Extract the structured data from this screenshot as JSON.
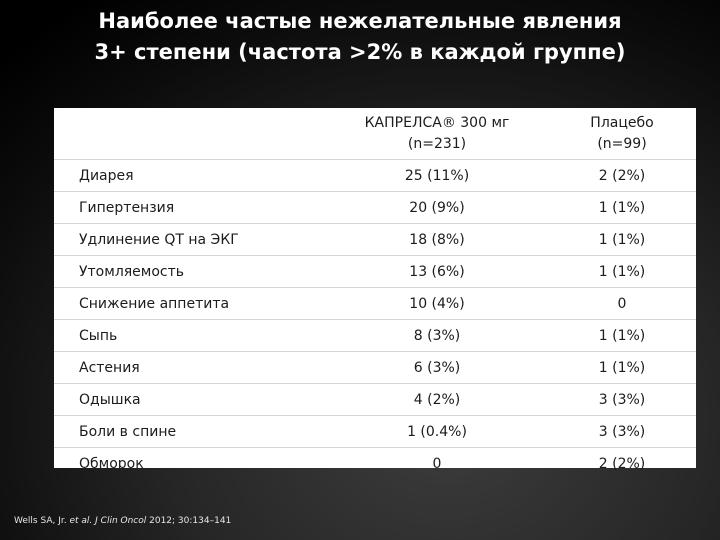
{
  "title": {
    "line1": "Наиболее частые нежелательные явления",
    "line2": "3+ степени (частота >2% в каждой группе)"
  },
  "table": {
    "corner": "",
    "col1": {
      "line1": "КАПРЕЛСА® 300 мг",
      "line2": "(n=231)"
    },
    "col2": {
      "line1": "Плацебо",
      "line2": "(n=99)"
    },
    "rows": [
      {
        "event": "Диарея",
        "drug": "25 (11%)",
        "placebo": "2 (2%)"
      },
      {
        "event": "Гипертензия",
        "drug": "20 (9%)",
        "placebo": "1 (1%)"
      },
      {
        "event": "Удлинение QT на ЭКГ",
        "drug": "18 (8%)",
        "placebo": "1 (1%)"
      },
      {
        "event": "Утомляемость",
        "drug": "13 (6%)",
        "placebo": "1 (1%)"
      },
      {
        "event": "Снижение аппетита",
        "drug": "10 (4%)",
        "placebo": "0"
      },
      {
        "event": "Сыпь",
        "drug": "8 (3%)",
        "placebo": "1 (1%)"
      },
      {
        "event": "Астения",
        "drug": "6 (3%)",
        "placebo": "1 (1%)"
      },
      {
        "event": "Одышка",
        "drug": "4 (2%)",
        "placebo": "3 (3%)"
      },
      {
        "event": "Боли в спине",
        "drug": "1 (0.4%)",
        "placebo": "3 (3%)"
      },
      {
        "event": "Обморок",
        "drug": "0",
        "placebo": "2 (2%)"
      }
    ]
  },
  "citation": {
    "authors": "Wells SA, Jr. ",
    "etal": "et al.",
    "journal": " J Clin Oncol",
    "details": " 2012; 30:134–141"
  },
  "colors": {
    "title": "#ffffff",
    "table_background": "#ffffff",
    "table_text": "#1c1c1c",
    "row_divider": "#d6d6d6",
    "citation": "#e6e6e6"
  }
}
